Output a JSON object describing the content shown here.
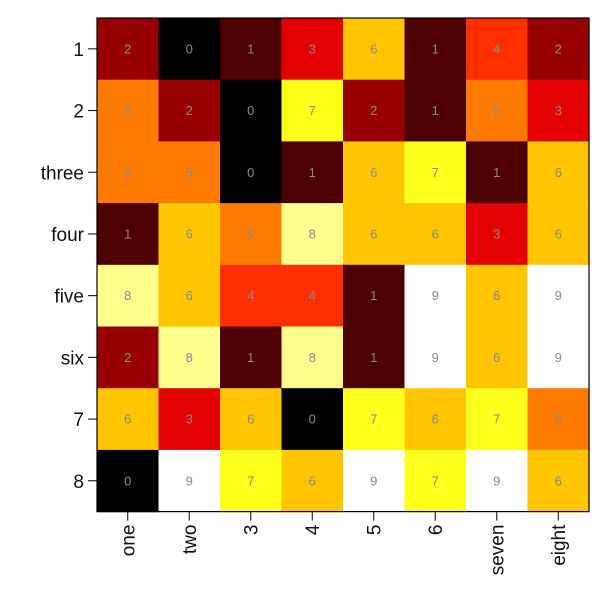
{
  "chart_data": {
    "type": "heatmap",
    "title": "",
    "xlabel": "",
    "ylabel": "",
    "colormap": "hot",
    "value_range": [
      0,
      9
    ],
    "x_categories": [
      "one",
      "two",
      "3",
      "4",
      "5",
      "6",
      "seven",
      "eight"
    ],
    "y_categories": [
      "1",
      "2",
      "three",
      "four",
      "five",
      "six",
      "7",
      "8"
    ],
    "values": [
      [
        2,
        0,
        1,
        3,
        6,
        1,
        4,
        2
      ],
      [
        5,
        2,
        0,
        7,
        2,
        1,
        5,
        3
      ],
      [
        5,
        5,
        0,
        1,
        6,
        7,
        1,
        6
      ],
      [
        1,
        6,
        5,
        8,
        6,
        6,
        3,
        6
      ],
      [
        8,
        6,
        4,
        4,
        1,
        9,
        6,
        9
      ],
      [
        2,
        8,
        1,
        8,
        1,
        9,
        6,
        9
      ],
      [
        6,
        3,
        6,
        0,
        7,
        6,
        7,
        5
      ],
      [
        0,
        9,
        7,
        6,
        9,
        7,
        9,
        6
      ]
    ],
    "annotated": true,
    "grid": false,
    "legend": "none"
  }
}
